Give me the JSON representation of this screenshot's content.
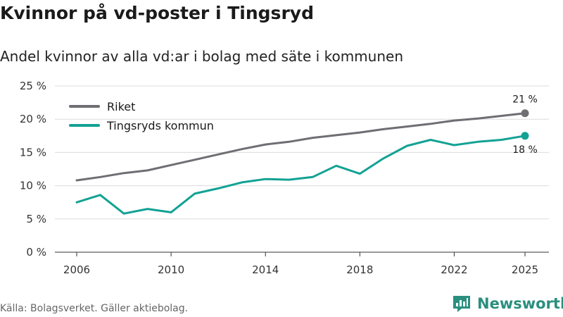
{
  "header": {
    "title": "Kvinnor på vd-poster i Tingsryd",
    "subtitle": "Andel kvinnor av alla vd:ar i bolag med säte i kommunen"
  },
  "footer": {
    "source": "Källa: Bolagsverket. Gäller aktiebolag.",
    "brand": "Newsworthy"
  },
  "chart_data": {
    "type": "line",
    "title": "Kvinnor på vd-poster i Tingsryd",
    "subtitle": "Andel kvinnor av alla vd:ar i bolag med säte i kommunen",
    "xlabel": "",
    "ylabel": "",
    "x": [
      2006,
      2007,
      2008,
      2009,
      2010,
      2011,
      2012,
      2013,
      2014,
      2015,
      2016,
      2017,
      2018,
      2019,
      2020,
      2021,
      2022,
      2023,
      2024,
      2025
    ],
    "xlim": [
      2006,
      2025
    ],
    "ylim": [
      0,
      25
    ],
    "xticks": [
      2006,
      2010,
      2014,
      2018,
      2022,
      2025
    ],
    "yticks": [
      0,
      5,
      10,
      15,
      20,
      25
    ],
    "ytick_labels": [
      "0 %",
      "5 %",
      "10 %",
      "15 %",
      "20 %",
      "25 %"
    ],
    "grid": true,
    "legend": "top-left",
    "series": [
      {
        "name": "Riket",
        "color": "#6e6e73",
        "values": [
          10.8,
          11.3,
          11.9,
          12.3,
          13.1,
          13.9,
          14.7,
          15.5,
          16.2,
          16.6,
          17.2,
          17.6,
          18.0,
          18.5,
          18.9,
          19.3,
          19.8,
          20.1,
          20.5,
          20.9
        ],
        "end_label": "21 %"
      },
      {
        "name": "Tingsryds kommun",
        "color": "#12a294",
        "values": [
          7.5,
          8.6,
          5.8,
          6.5,
          6.0,
          8.8,
          9.6,
          10.5,
          11.0,
          10.9,
          11.3,
          13.0,
          11.8,
          14.1,
          16.0,
          16.9,
          16.1,
          16.6,
          16.9,
          17.5
        ],
        "end_label": "18 %"
      }
    ]
  }
}
